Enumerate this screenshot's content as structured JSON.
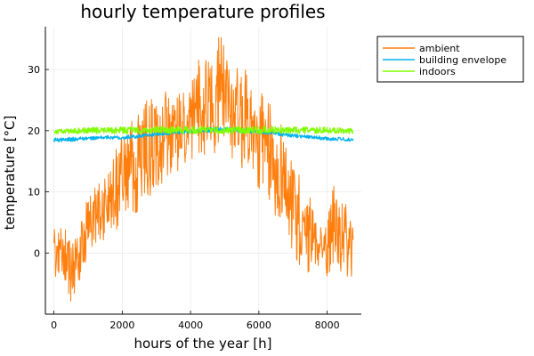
{
  "chart_data": {
    "type": "line",
    "title": "hourly temperature profiles",
    "xlabel": "hours of the year [h]",
    "ylabel": "temperature [°C]",
    "xlim": [
      -250,
      9000
    ],
    "ylim": [
      -10,
      37
    ],
    "xticks": [
      0,
      2000,
      4000,
      6000,
      8000
    ],
    "yticks": [
      0,
      10,
      20,
      30
    ],
    "xtick_labels": [
      "0",
      "2000",
      "4000",
      "6000",
      "8000"
    ],
    "ytick_labels": [
      "0",
      "10",
      "20",
      "30"
    ],
    "grid": true,
    "legend_position": "top-right, outside plot area",
    "series": [
      {
        "name": "ambient",
        "color": "#ff7f0e",
        "x": [
          0,
          100,
          200,
          300,
          400,
          500,
          600,
          700,
          800,
          900,
          1000,
          1100,
          1200,
          1300,
          1400,
          1500,
          1600,
          1700,
          1800,
          1900,
          2000,
          2100,
          2200,
          2300,
          2400,
          2500,
          2600,
          2700,
          2800,
          2900,
          3000,
          3100,
          3200,
          3300,
          3400,
          3500,
          3600,
          3700,
          3800,
          3900,
          4000,
          4100,
          4200,
          4300,
          4400,
          4500,
          4600,
          4700,
          4800,
          4900,
          5000,
          5100,
          5200,
          5300,
          5400,
          5500,
          5600,
          5700,
          5800,
          5900,
          6000,
          6100,
          6200,
          6300,
          6400,
          6500,
          6600,
          6700,
          6800,
          6900,
          7000,
          7100,
          7200,
          7300,
          7400,
          7500,
          7600,
          7700,
          7800,
          7900,
          8000,
          8100,
          8200,
          8300,
          8400,
          8500,
          8600,
          8700,
          8760
        ],
        "low": [
          -5,
          -4,
          -3,
          -4,
          -6,
          -8,
          -7,
          -5,
          -4,
          -2,
          0,
          1,
          0,
          2,
          1,
          3,
          2,
          4,
          3,
          5,
          6,
          4,
          5,
          7,
          6,
          8,
          9,
          10,
          9,
          11,
          10,
          12,
          11,
          13,
          12,
          14,
          13,
          15,
          14,
          16,
          15,
          16,
          17,
          15,
          16,
          18,
          17,
          16,
          18,
          19,
          17,
          16,
          15,
          17,
          16,
          14,
          13,
          15,
          12,
          11,
          10,
          12,
          9,
          8,
          7,
          6,
          5,
          6,
          3,
          2,
          0,
          -1,
          -2,
          -3,
          -4,
          -3,
          -2,
          -3,
          -2,
          -1,
          -4,
          -3,
          -1,
          -2,
          -3,
          -2,
          -4,
          -4,
          -3
        ],
        "high": [
          4,
          3,
          4,
          5,
          3,
          1,
          2,
          3,
          5,
          7,
          10,
          9,
          12,
          11,
          13,
          12,
          16,
          15,
          17,
          18,
          19,
          21,
          20,
          22,
          21,
          24,
          23,
          25,
          24,
          26,
          25,
          22,
          27,
          26,
          28,
          27,
          25,
          28,
          26,
          24,
          27,
          30,
          31,
          33,
          32,
          34,
          30,
          33,
          35,
          36,
          34,
          32,
          30,
          33,
          29,
          31,
          30,
          28,
          26,
          24,
          25,
          27,
          23,
          25,
          22,
          20,
          23,
          21,
          18,
          16,
          14,
          12,
          13,
          10,
          8,
          9,
          7,
          6,
          5,
          4,
          5,
          9,
          11,
          8,
          7,
          10,
          6,
          5,
          4
        ]
      },
      {
        "name": "building envelope",
        "color": "#00b3f0",
        "x": [
          0,
          400,
          800,
          1200,
          1600,
          2000,
          2400,
          2800,
          3200,
          3600,
          4000,
          4400,
          4800,
          5200,
          5600,
          6000,
          6400,
          6800,
          7200,
          7600,
          8000,
          8400,
          8760
        ],
        "low": [
          18.2,
          18.2,
          18.4,
          18.5,
          18.6,
          18.6,
          18.8,
          19.0,
          19.2,
          19.4,
          19.6,
          19.7,
          19.8,
          19.7,
          19.6,
          19.5,
          19.3,
          19.0,
          18.8,
          18.6,
          18.4,
          18.3,
          18.2
        ],
        "high": [
          18.8,
          18.9,
          19.0,
          19.1,
          19.2,
          19.2,
          19.4,
          19.6,
          19.8,
          20.0,
          20.2,
          20.4,
          20.6,
          20.5,
          20.3,
          20.1,
          19.9,
          19.6,
          19.4,
          19.2,
          19.0,
          18.9,
          18.8
        ]
      },
      {
        "name": "indoors",
        "color": "#7fff00",
        "x": [
          0,
          400,
          800,
          1200,
          1600,
          2000,
          2400,
          2800,
          3200,
          3600,
          4000,
          4400,
          4800,
          5200,
          5600,
          6000,
          6400,
          6800,
          7200,
          7600,
          8000,
          8400,
          8760
        ],
        "low": [
          19.5,
          19.5,
          19.5,
          19.5,
          19.5,
          19.5,
          19.5,
          19.5,
          19.5,
          19.5,
          19.5,
          19.5,
          19.5,
          19.5,
          19.5,
          19.5,
          19.5,
          19.5,
          19.5,
          19.5,
          19.5,
          19.5,
          19.5
        ],
        "high": [
          20.2,
          20.3,
          20.5,
          20.6,
          20.6,
          20.7,
          20.7,
          20.7,
          20.7,
          20.7,
          20.7,
          20.7,
          20.7,
          20.7,
          20.7,
          20.7,
          20.7,
          20.7,
          20.6,
          20.6,
          20.6,
          20.5,
          20.4
        ]
      }
    ]
  }
}
